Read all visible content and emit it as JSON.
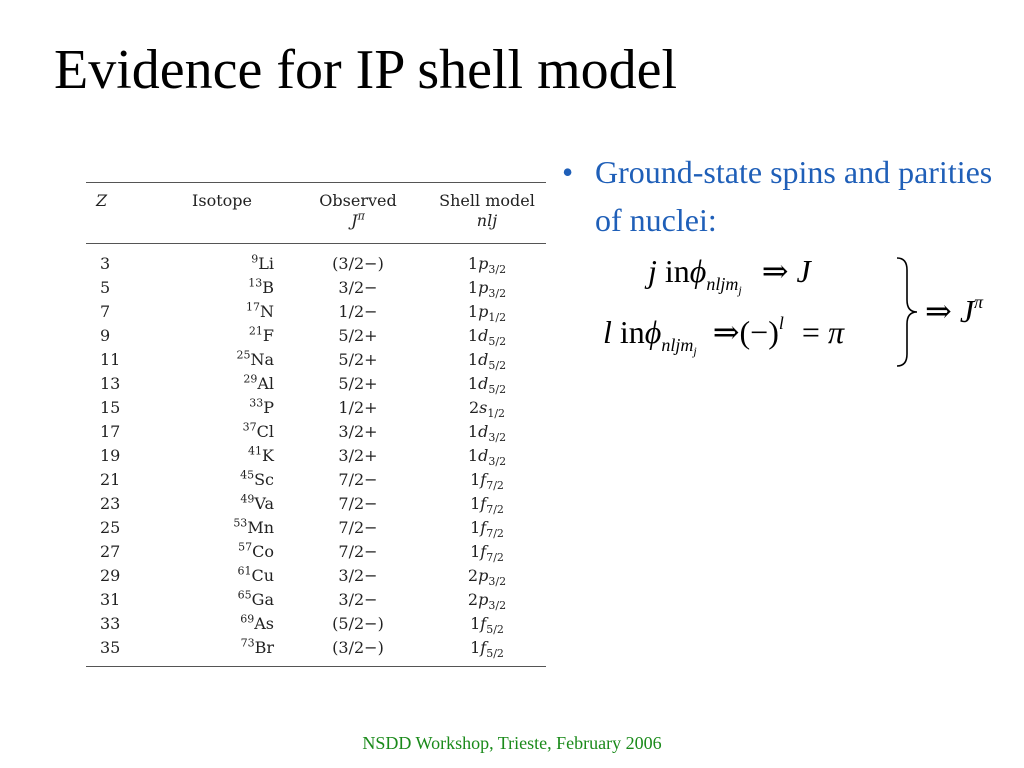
{
  "slide": {
    "title": "Evidence for IP shell model",
    "bullet": "Ground-state spins and parities of nuclei:",
    "footer": "NSDD Workshop, Trieste, February 2006"
  },
  "equation": {
    "line1": {
      "j": "j",
      "in": "in",
      "phi": "ϕ",
      "sub": "nljm",
      "subsub": "j",
      "arrow": "⇒",
      "rhs": "J"
    },
    "line2": {
      "l": "l",
      "in": "in",
      "phi": "ϕ",
      "sub": "nljm",
      "subsub": "j",
      "arrow": "⇒",
      "paren": "(−)",
      "sup": "l",
      "eq": "=",
      "pi": "π"
    },
    "result": {
      "arrow": "⇒",
      "J": "J",
      "sup": "π"
    }
  },
  "table": {
    "headers": {
      "z": "Z",
      "isotope": "Isotope",
      "observed": "Observed",
      "observed_sym": "J",
      "observed_sup": "π",
      "shell": "Shell model",
      "shell_sym": "nlj"
    },
    "rows": [
      {
        "z": "3",
        "mass": "9",
        "el": "Li",
        "obs": "(3/2−)",
        "n": "1",
        "l": "p",
        "j": "3/2"
      },
      {
        "z": "5",
        "mass": "13",
        "el": "B",
        "obs": "3/2−",
        "n": "1",
        "l": "p",
        "j": "3/2"
      },
      {
        "z": "7",
        "mass": "17",
        "el": "N",
        "obs": "1/2−",
        "n": "1",
        "l": "p",
        "j": "1/2"
      },
      {
        "z": "9",
        "mass": "21",
        "el": "F",
        "obs": "5/2+",
        "n": "1",
        "l": "d",
        "j": "5/2"
      },
      {
        "z": "11",
        "mass": "25",
        "el": "Na",
        "obs": "5/2+",
        "n": "1",
        "l": "d",
        "j": "5/2"
      },
      {
        "z": "13",
        "mass": "29",
        "el": "Al",
        "obs": "5/2+",
        "n": "1",
        "l": "d",
        "j": "5/2"
      },
      {
        "z": "15",
        "mass": "33",
        "el": "P",
        "obs": "1/2+",
        "n": "2",
        "l": "s",
        "j": "1/2"
      },
      {
        "z": "17",
        "mass": "37",
        "el": "Cl",
        "obs": "3/2+",
        "n": "1",
        "l": "d",
        "j": "3/2"
      },
      {
        "z": "19",
        "mass": "41",
        "el": "K",
        "obs": "3/2+",
        "n": "1",
        "l": "d",
        "j": "3/2"
      },
      {
        "z": "21",
        "mass": "45",
        "el": "Sc",
        "obs": "7/2−",
        "n": "1",
        "l": "f",
        "j": "7/2"
      },
      {
        "z": "23",
        "mass": "49",
        "el": "Va",
        "obs": "7/2−",
        "n": "1",
        "l": "f",
        "j": "7/2"
      },
      {
        "z": "25",
        "mass": "53",
        "el": "Mn",
        "obs": "7/2−",
        "n": "1",
        "l": "f",
        "j": "7/2"
      },
      {
        "z": "27",
        "mass": "57",
        "el": "Co",
        "obs": "7/2−",
        "n": "1",
        "l": "f",
        "j": "7/2"
      },
      {
        "z": "29",
        "mass": "61",
        "el": "Cu",
        "obs": "3/2−",
        "n": "2",
        "l": "p",
        "j": "3/2"
      },
      {
        "z": "31",
        "mass": "65",
        "el": "Ga",
        "obs": "3/2−",
        "n": "2",
        "l": "p",
        "j": "3/2"
      },
      {
        "z": "33",
        "mass": "69",
        "el": "As",
        "obs": "(5/2−)",
        "n": "1",
        "l": "f",
        "j": "5/2"
      },
      {
        "z": "35",
        "mass": "73",
        "el": "Br",
        "obs": "(3/2−)",
        "n": "1",
        "l": "f",
        "j": "5/2"
      }
    ]
  },
  "colors": {
    "bullet": "#1f5fb8",
    "footer": "#1a8a1a"
  }
}
